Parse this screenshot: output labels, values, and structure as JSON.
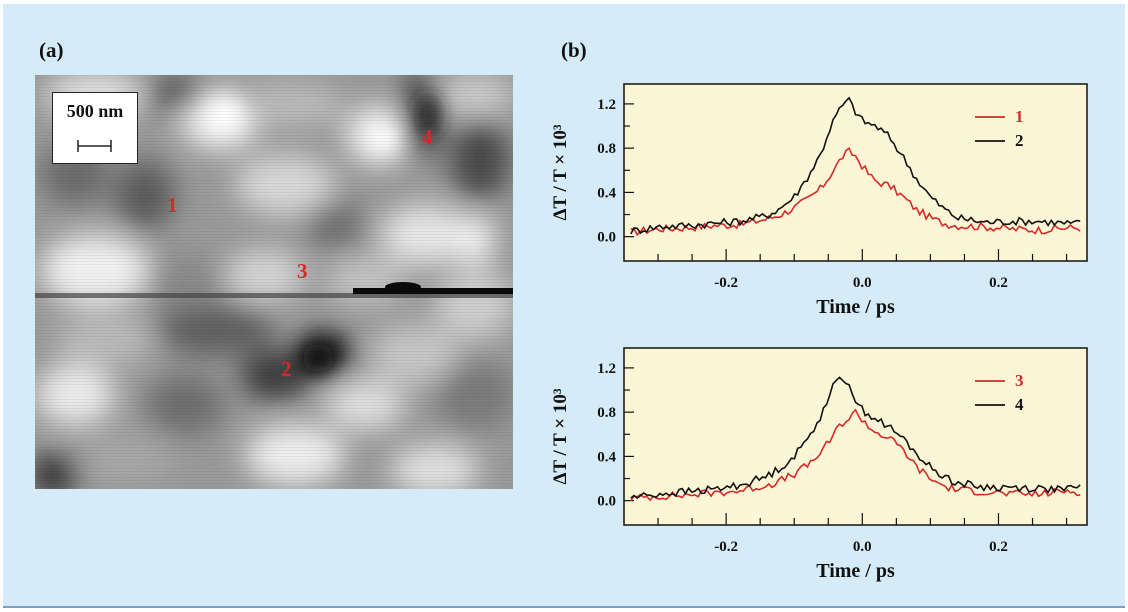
{
  "figure": {
    "panel_a_label": "(a)",
    "panel_b_label": "(b)",
    "colors": {
      "background": "#d5ecf8",
      "plot_background": "#fdf6d6",
      "trace_red": "#d42a2a",
      "trace_black": "#111111"
    }
  },
  "afm_image": {
    "scale_bar_label": "500 nm",
    "site_labels": [
      "1",
      "2",
      "3",
      "4"
    ]
  },
  "chart_data": [
    {
      "type": "line",
      "xlabel": "Time / ps",
      "ylabel": "ΔT / T × 10³",
      "xlim": [
        -0.35,
        0.33
      ],
      "ylim": [
        -0.22,
        1.38
      ],
      "x_ticks": [
        "-0.2",
        "0.0",
        "0.2"
      ],
      "y_ticks": [
        "0.0",
        "0.4",
        "0.8",
        "1.2"
      ],
      "legend_position": "top-right",
      "series": [
        {
          "name": "1",
          "color": "#d42a2a",
          "x": [
            -0.34,
            -0.3,
            -0.26,
            -0.22,
            -0.18,
            -0.14,
            -0.12,
            -0.1,
            -0.08,
            -0.06,
            -0.05,
            -0.04,
            -0.03,
            -0.02,
            -0.01,
            0.0,
            0.01,
            0.02,
            0.04,
            0.06,
            0.08,
            0.1,
            0.12,
            0.14,
            0.18,
            0.22,
            0.26,
            0.3,
            0.32
          ],
          "y": [
            0.04,
            0.07,
            0.08,
            0.1,
            0.11,
            0.16,
            0.2,
            0.26,
            0.34,
            0.44,
            0.53,
            0.62,
            0.72,
            0.77,
            0.73,
            0.64,
            0.56,
            0.5,
            0.46,
            0.36,
            0.24,
            0.17,
            0.12,
            0.1,
            0.09,
            0.07,
            0.06,
            0.08,
            0.08
          ]
        },
        {
          "name": "2",
          "color": "#111111",
          "x": [
            -0.34,
            -0.3,
            -0.26,
            -0.22,
            -0.18,
            -0.14,
            -0.12,
            -0.1,
            -0.08,
            -0.06,
            -0.05,
            -0.04,
            -0.03,
            -0.02,
            -0.01,
            0.0,
            0.01,
            0.02,
            0.04,
            0.06,
            0.08,
            0.1,
            0.12,
            0.14,
            0.18,
            0.22,
            0.26,
            0.3,
            0.32
          ],
          "y": [
            0.05,
            0.09,
            0.1,
            0.12,
            0.14,
            0.19,
            0.26,
            0.36,
            0.54,
            0.76,
            0.94,
            1.08,
            1.18,
            1.24,
            1.13,
            1.05,
            1.02,
            1.0,
            0.9,
            0.72,
            0.52,
            0.36,
            0.25,
            0.17,
            0.13,
            0.14,
            0.14,
            0.12,
            0.12
          ]
        }
      ]
    },
    {
      "type": "line",
      "xlabel": "Time / ps",
      "ylabel": "ΔT / T × 10³",
      "xlim": [
        -0.35,
        0.33
      ],
      "ylim": [
        -0.22,
        1.38
      ],
      "x_ticks": [
        "-0.2",
        "0.0",
        "0.2"
      ],
      "y_ticks": [
        "0.0",
        "0.4",
        "0.8",
        "1.2"
      ],
      "legend_position": "top-right",
      "series": [
        {
          "name": "3",
          "color": "#d42a2a",
          "x": [
            -0.34,
            -0.3,
            -0.26,
            -0.22,
            -0.18,
            -0.14,
            -0.12,
            -0.1,
            -0.08,
            -0.06,
            -0.05,
            -0.04,
            -0.03,
            -0.02,
            -0.01,
            0.0,
            0.01,
            0.02,
            0.04,
            0.06,
            0.08,
            0.1,
            0.12,
            0.14,
            0.18,
            0.22,
            0.26,
            0.3,
            0.32
          ],
          "y": [
            0.02,
            0.04,
            0.05,
            0.07,
            0.09,
            0.14,
            0.18,
            0.24,
            0.32,
            0.44,
            0.52,
            0.62,
            0.7,
            0.74,
            0.8,
            0.74,
            0.66,
            0.62,
            0.56,
            0.46,
            0.3,
            0.2,
            0.13,
            0.1,
            0.08,
            0.06,
            0.06,
            0.09,
            0.08
          ]
        },
        {
          "name": "4",
          "color": "#111111",
          "x": [
            -0.34,
            -0.3,
            -0.26,
            -0.22,
            -0.18,
            -0.14,
            -0.12,
            -0.1,
            -0.08,
            -0.06,
            -0.05,
            -0.04,
            -0.03,
            -0.02,
            -0.01,
            0.0,
            0.01,
            0.02,
            0.04,
            0.06,
            0.08,
            0.1,
            0.12,
            0.14,
            0.18,
            0.22,
            0.26,
            0.3,
            0.32
          ],
          "y": [
            0.03,
            0.06,
            0.08,
            0.1,
            0.14,
            0.22,
            0.3,
            0.4,
            0.56,
            0.78,
            0.94,
            1.06,
            1.1,
            1.08,
            0.9,
            0.82,
            0.78,
            0.74,
            0.66,
            0.56,
            0.42,
            0.3,
            0.22,
            0.16,
            0.12,
            0.12,
            0.11,
            0.1,
            0.12
          ]
        }
      ]
    }
  ]
}
